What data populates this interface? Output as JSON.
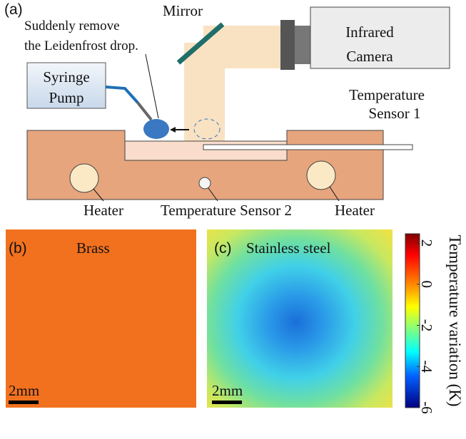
{
  "panel_a": {
    "label": "(a)",
    "mirror": "Mirror",
    "camera": [
      "Infrared",
      "Camera"
    ],
    "note": [
      "Suddenly remove",
      "the Leidenfrost drop."
    ],
    "pump": [
      "Syringe",
      "Pump"
    ],
    "sensor1": [
      "Temperature",
      "Sensor 1"
    ],
    "heater_left": "Heater",
    "sensor2": "Temperature Sensor 2",
    "heater_right": "Heater"
  },
  "panel_b": {
    "label": "(b)",
    "title": "Brass",
    "scale": "2mm"
  },
  "panel_c": {
    "label": "(c)",
    "title": "Stainless steel",
    "scale": "2mm"
  },
  "colorbar": {
    "title": "Temperature variation (K)",
    "lim": [
      -6,
      2.45
    ],
    "ticks": [
      2,
      0,
      -2,
      -4,
      -6
    ]
  }
}
